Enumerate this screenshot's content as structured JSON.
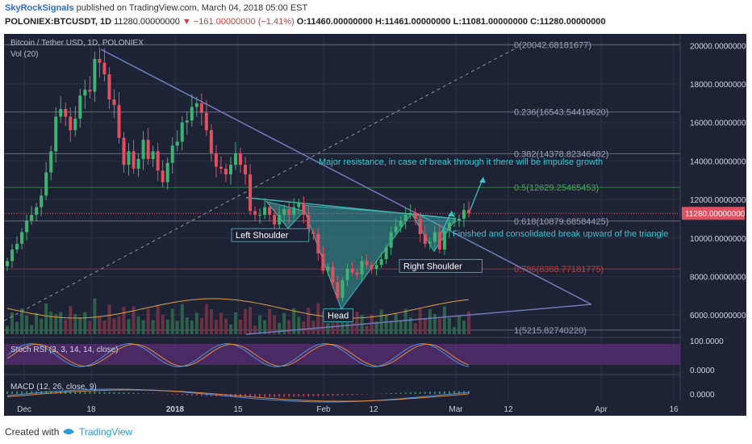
{
  "header": {
    "publisher": "SkyRockSignals",
    "published_text": " published on TradingView.com, March 04, 2018 05:00 EST",
    "symbol": "POLONIEX:BTCUSDT, 1D",
    "last": "11280.00000000",
    "change": "▼ −161.00000000 (−1.41%)",
    "open": "O:11460.00000000",
    "high": "H:11461.00000000",
    "low": "L:11081.00000000",
    "close": "C:11280.00000000"
  },
  "colors": {
    "background": "#1e2235",
    "grid": "#2c3147",
    "up": "#3cb371",
    "down": "#e0505f",
    "trendline": "#6c7ab8",
    "triangle_fill": "#3fb6b3",
    "annotation": "#34c7d1",
    "fib_green": "#2d8a3c",
    "fib_red": "#b22a2a",
    "stoch_band": "#5b2e78",
    "macd_line": "#4a8fe0",
    "signal_line": "#e08a3a"
  },
  "chart_data": {
    "type": "candlestick",
    "title": "Bitcoin / Tether USD, 1D, POLONIEX",
    "volume_label": "Vol (20)",
    "ylim": [
      5000,
      20600
    ],
    "y_ticks": [
      "20000.00000000",
      "18000.00000000",
      "16000.00000000",
      "14000.00000000",
      "12000.00000000",
      "10000.00000000",
      "8000.00000000",
      "6000.00000000"
    ],
    "y_tick_values": [
      20000,
      18000,
      16000,
      14000,
      12000,
      10000,
      8000,
      6000
    ],
    "last_price_label": "11280.00000000",
    "last_price": 11280,
    "x_ticks": [
      "Dec",
      "18",
      "2018",
      "15",
      "Feb",
      "12",
      "Mar",
      "12",
      "Apr",
      "16"
    ],
    "candles_ohlc_summary": "Daily BTC/USDT Nov 2017 – Mar 4 2018; peak ~19300 mid-Dec, low ~6000 Feb 6, last 11280",
    "closes": [
      8800,
      9400,
      9700,
      10300,
      10900,
      11200,
      11600,
      12200,
      13400,
      14500,
      16300,
      16700,
      16300,
      15600,
      16200,
      17400,
      17700,
      17600,
      19300,
      19100,
      18500,
      17200,
      16900,
      15200,
      13800,
      14500,
      13600,
      14100,
      15100,
      14100,
      14500,
      13500,
      12900,
      13900,
      14800,
      15000,
      16000,
      16100,
      16800,
      17000,
      16500,
      15600,
      14400,
      13700,
      13600,
      13300,
      13800,
      14400,
      13800,
      13300,
      11400,
      11200,
      11200,
      11600,
      11200,
      10700,
      11200,
      11500,
      11200,
      11600,
      11800,
      11200,
      10300,
      10200,
      9200,
      8300,
      8500,
      7700,
      6900,
      7800,
      8400,
      8200,
      8100,
      8800,
      8600,
      8400,
      8600,
      8900,
      9500,
      10300,
      10600,
      10900,
      11200,
      11300,
      11000,
      10200,
      9700,
      9800,
      10300,
      9400,
      10400,
      10800,
      10900,
      11000,
      11450,
      11280
    ],
    "volume_ma_label": "",
    "fib_levels": [
      {
        "label": "0(20042.68181677)",
        "value": 20042.68
      },
      {
        "label": "0.236(16543.54419620)",
        "value": 16543.54
      },
      {
        "label": "0.382(14378.82346482)",
        "value": 14378.82
      },
      {
        "label": "0.5(12629.25465453)",
        "value": 12629.25
      },
      {
        "label": "0.618(10879.68584425)",
        "value": 10879.69
      },
      {
        "label": "0.786(8388.77181775)",
        "value": 8388.77
      },
      {
        "label": "1(5215.82740220)",
        "value": 5215.83
      }
    ],
    "annotations": {
      "left_shoulder": "Left Shoulder",
      "head": "Head",
      "right_shoulder": "Right Shoulder",
      "resistance": "Major resistance, in case of break through it there will be impulse growth",
      "breakout": "Finished and consolidated break upward of the triangle"
    },
    "stoch_rsi": {
      "label": "Stoch RSI (3, 3, 14, 14, close)",
      "y_ticks": [
        "100.0000",
        "0.0000"
      ],
      "band": [
        20,
        80
      ]
    },
    "macd": {
      "label": "MACD (12, 26, close, 9)",
      "y_ticks": [
        "0.0000"
      ]
    }
  },
  "footer": {
    "created_with": "Created with",
    "brand": "TradingView"
  }
}
